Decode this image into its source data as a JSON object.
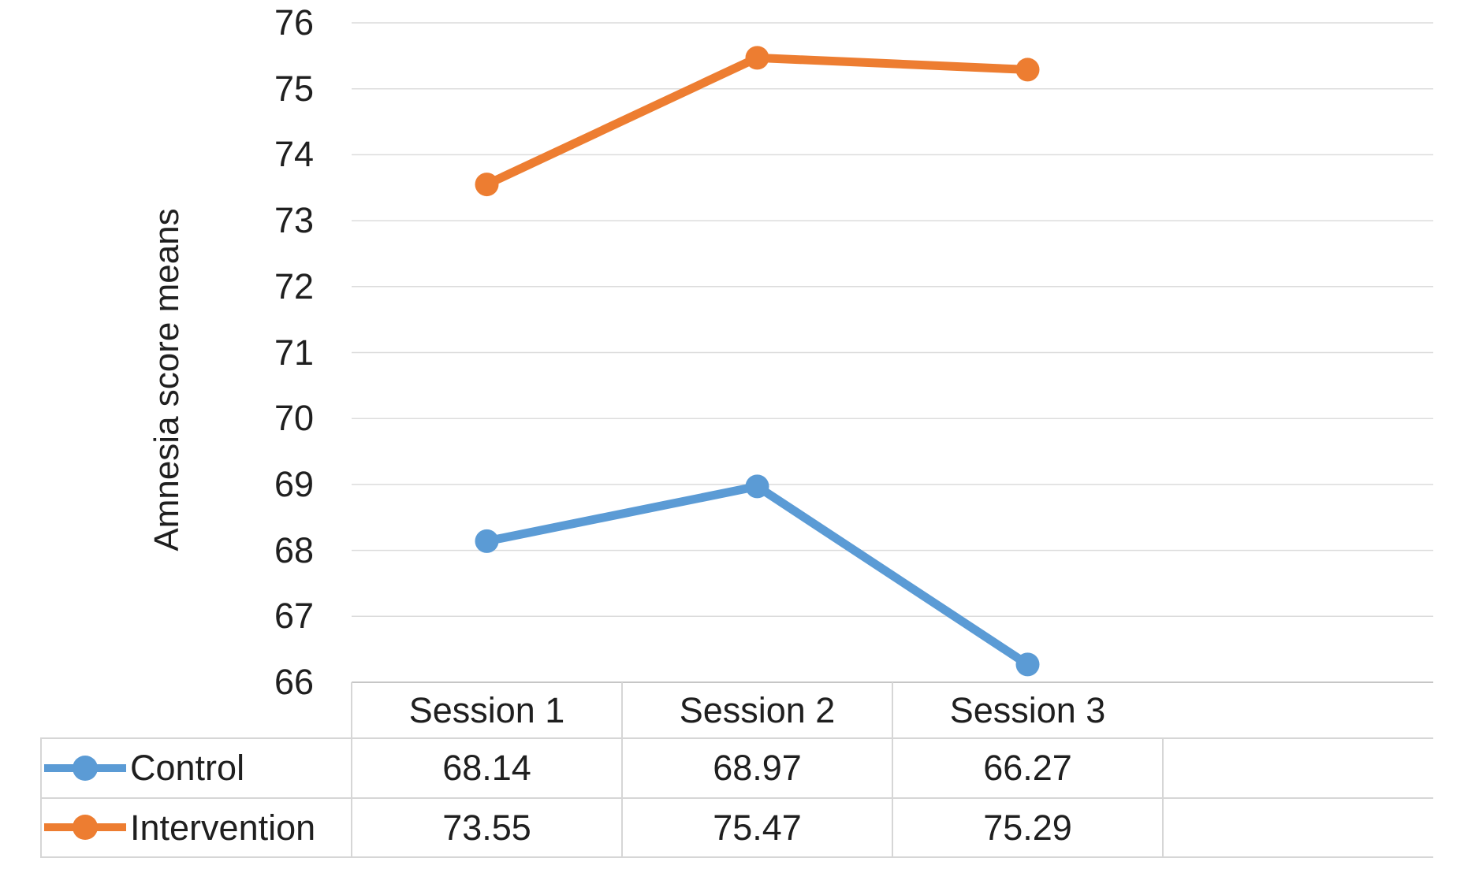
{
  "chart_data": {
    "type": "line",
    "title": "",
    "ylabel": "Amnesia score means",
    "xlabel": "",
    "categories": [
      "Session 1",
      "Session 2",
      "Session 3"
    ],
    "series": [
      {
        "name": "Control",
        "color": "#5B9BD5",
        "values": [
          68.14,
          68.97,
          66.27
        ]
      },
      {
        "name": "Intervention",
        "color": "#ED7D31",
        "values": [
          73.55,
          75.47,
          75.29
        ]
      }
    ],
    "y_axis": {
      "min": 66,
      "max": 76,
      "step": 1,
      "ticks": [
        76,
        75,
        74,
        73,
        72,
        71,
        70,
        69,
        68,
        67,
        66
      ]
    },
    "grid": true,
    "legend_position": "data-table-left-column",
    "data_table_shown": true,
    "empty_trailing_slot": true
  },
  "colors": {
    "grid": "#dcdcdc",
    "table_border": "#d6d6d6",
    "axis_line": "#c6c6c6",
    "text": "#1f1f1f"
  }
}
